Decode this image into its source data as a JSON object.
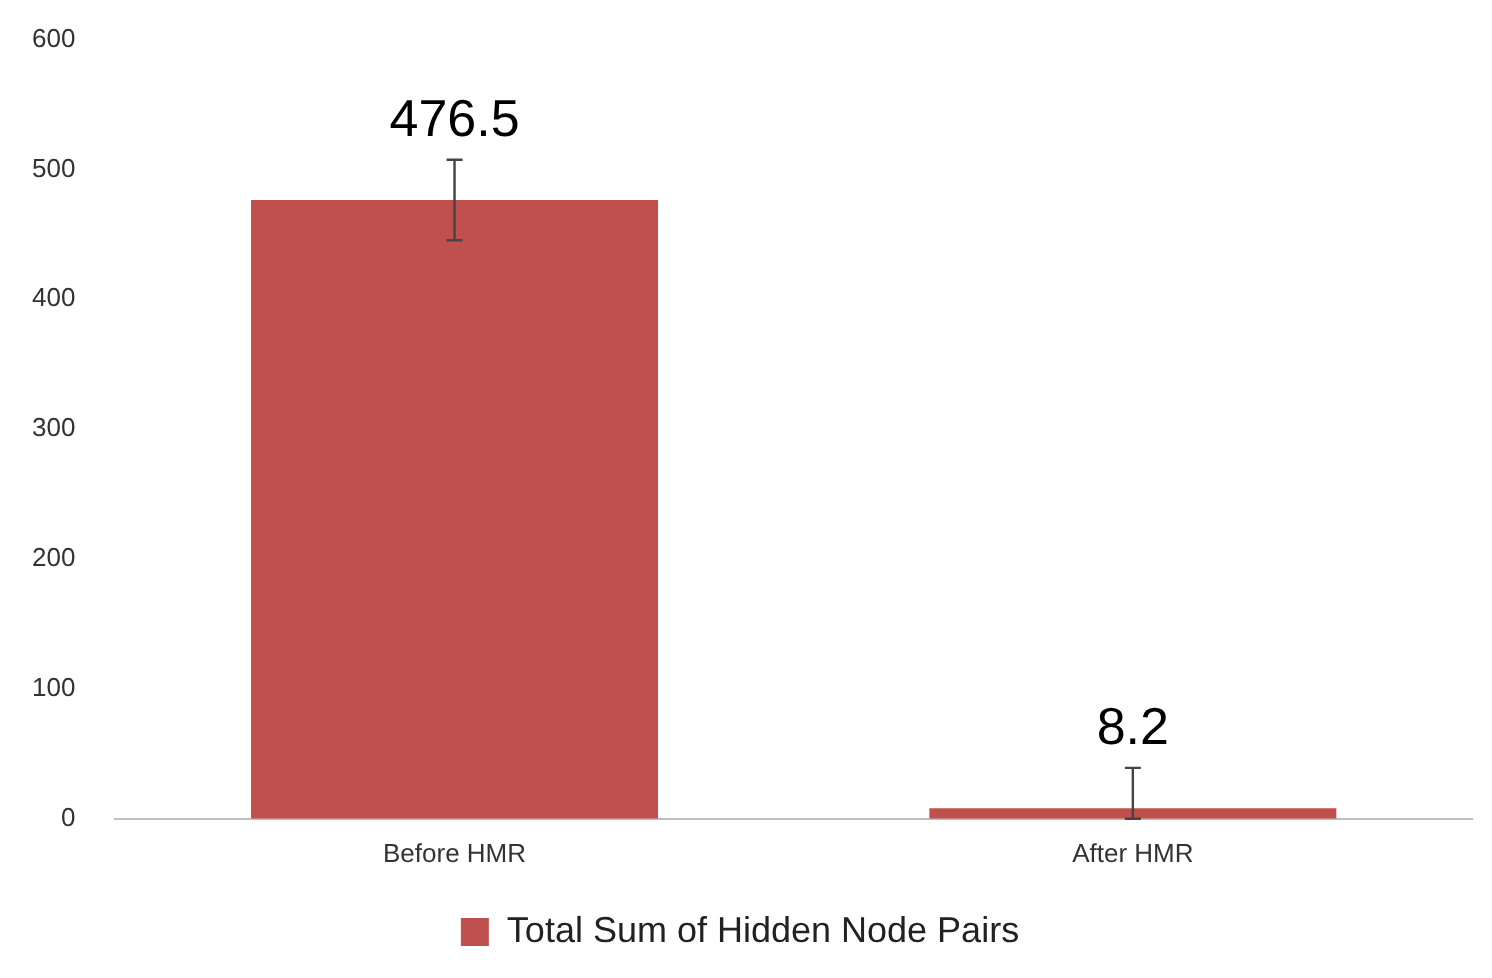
{
  "chart_data": {
    "type": "bar",
    "categories": [
      "Before HMR",
      "After HMR"
    ],
    "series": [
      {
        "name": "Total Sum of Hidden Node Pairs",
        "color": "#c0504d",
        "values": [
          476.5,
          8.2
        ],
        "errors": [
          31,
          [
            0,
            39.2
          ]
        ]
      }
    ],
    "ylim": [
      0,
      600
    ],
    "yticks": [
      0,
      100,
      200,
      300,
      400,
      500,
      600
    ],
    "grid": false,
    "legend": "bottom",
    "data_labels": true
  }
}
